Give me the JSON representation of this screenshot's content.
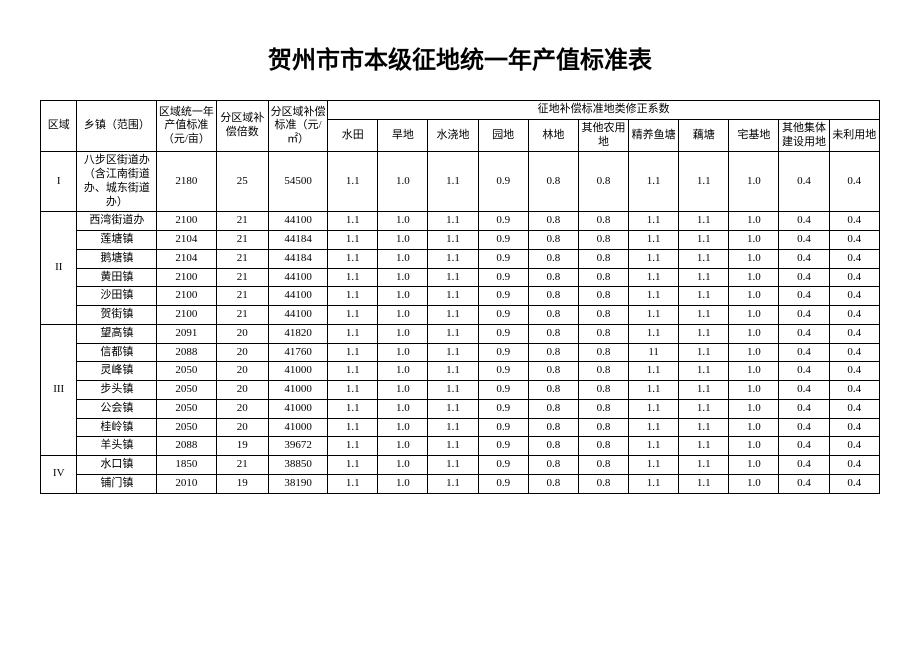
{
  "title": "贺州市市本级征地统一年产值标准表",
  "header": {
    "region": "区域",
    "town": "乡镇（范围）",
    "std": "区域统一年产值标准（元/亩）",
    "mult": "分区域补偿倍数",
    "comp": "分区域补偿标准（元/㎡）",
    "coef_group": "征地补偿标准地类修正系数",
    "coef": [
      "水田",
      "旱地",
      "水浇地",
      "园地",
      "林地",
      "其他农用地",
      "精养鱼塘",
      "藕塘",
      "宅基地",
      "其他集体建设用地",
      "未利用地"
    ]
  },
  "groups": [
    {
      "region": "I",
      "rows": [
        {
          "town": "八步区街道办（含江南街道办、城东街道办）",
          "std": "2180",
          "mult": "25",
          "comp": "54500",
          "coef": [
            "1.1",
            "1.0",
            "1.1",
            "0.9",
            "0.8",
            "0.8",
            "1.1",
            "1.1",
            "1.0",
            "0.4",
            "0.4"
          ]
        }
      ]
    },
    {
      "region": "II",
      "rows": [
        {
          "town": "西湾街道办",
          "std": "2100",
          "mult": "21",
          "comp": "44100",
          "coef": [
            "1.1",
            "1.0",
            "1.1",
            "0.9",
            "0.8",
            "0.8",
            "1.1",
            "1.1",
            "1.0",
            "0.4",
            "0.4"
          ]
        },
        {
          "town": "莲塘镇",
          "std": "2104",
          "mult": "21",
          "comp": "44184",
          "coef": [
            "1.1",
            "1.0",
            "1.1",
            "0.9",
            "0.8",
            "0.8",
            "1.1",
            "1.1",
            "1.0",
            "0.4",
            "0.4"
          ]
        },
        {
          "town": "鹅塘镇",
          "std": "2104",
          "mult": "21",
          "comp": "44184",
          "coef": [
            "1.1",
            "1.0",
            "1.1",
            "0.9",
            "0.8",
            "0.8",
            "1.1",
            "1.1",
            "1.0",
            "0.4",
            "0.4"
          ]
        },
        {
          "town": "黄田镇",
          "std": "2100",
          "mult": "21",
          "comp": "44100",
          "coef": [
            "1.1",
            "1.0",
            "1.1",
            "0.9",
            "0.8",
            "0.8",
            "1.1",
            "1.1",
            "1.0",
            "0.4",
            "0.4"
          ]
        },
        {
          "town": "沙田镇",
          "std": "2100",
          "mult": "21",
          "comp": "44100",
          "coef": [
            "1.1",
            "1.0",
            "1.1",
            "0.9",
            "0.8",
            "0.8",
            "1.1",
            "1.1",
            "1.0",
            "0.4",
            "0.4"
          ]
        },
        {
          "town": "贺街镇",
          "std": "2100",
          "mult": "21",
          "comp": "44100",
          "coef": [
            "1.1",
            "1.0",
            "1.1",
            "0.9",
            "0.8",
            "0.8",
            "1.1",
            "1.1",
            "1.0",
            "0.4",
            "0.4"
          ]
        }
      ]
    },
    {
      "region": "III",
      "rows": [
        {
          "town": "望高镇",
          "std": "2091",
          "mult": "20",
          "comp": "41820",
          "coef": [
            "1.1",
            "1.0",
            "1.1",
            "0.9",
            "0.8",
            "0.8",
            "1.1",
            "1.1",
            "1.0",
            "0.4",
            "0.4"
          ]
        },
        {
          "town": "信都镇",
          "std": "2088",
          "mult": "20",
          "comp": "41760",
          "coef": [
            "1.1",
            "1.0",
            "1.1",
            "0.9",
            "0.8",
            "0.8",
            "11",
            "1.1",
            "1.0",
            "0.4",
            "0.4"
          ]
        },
        {
          "town": "灵峰镇",
          "std": "2050",
          "mult": "20",
          "comp": "41000",
          "coef": [
            "1.1",
            "1.0",
            "1.1",
            "0.9",
            "0.8",
            "0.8",
            "1.1",
            "1.1",
            "1.0",
            "0.4",
            "0.4"
          ]
        },
        {
          "town": "步头镇",
          "std": "2050",
          "mult": "20",
          "comp": "41000",
          "coef": [
            "1.1",
            "1.0",
            "1.1",
            "0.9",
            "0.8",
            "0.8",
            "1.1",
            "1.1",
            "1.0",
            "0.4",
            "0.4"
          ]
        },
        {
          "town": "公会镇",
          "std": "2050",
          "mult": "20",
          "comp": "41000",
          "coef": [
            "1.1",
            "1.0",
            "1.1",
            "0.9",
            "0.8",
            "0.8",
            "1.1",
            "1.1",
            "1.0",
            "0.4",
            "0.4"
          ]
        },
        {
          "town": "桂岭镇",
          "std": "2050",
          "mult": "20",
          "comp": "41000",
          "coef": [
            "1.1",
            "1.0",
            "1.1",
            "0.9",
            "0.8",
            "0.8",
            "1.1",
            "1.1",
            "1.0",
            "0.4",
            "0.4"
          ]
        },
        {
          "town": "羊头镇",
          "std": "2088",
          "mult": "19",
          "comp": "39672",
          "coef": [
            "1.1",
            "1.0",
            "1.1",
            "0.9",
            "0.8",
            "0.8",
            "1.1",
            "1.1",
            "1.0",
            "0.4",
            "0.4"
          ]
        }
      ]
    },
    {
      "region": "IV",
      "rows": [
        {
          "town": "水口镇",
          "std": "1850",
          "mult": "21",
          "comp": "38850",
          "coef": [
            "1.1",
            "1.0",
            "1.1",
            "0.9",
            "0.8",
            "0.8",
            "1.1",
            "1.1",
            "1.0",
            "0.4",
            "0.4"
          ]
        },
        {
          "town": "铺门镇",
          "std": "2010",
          "mult": "19",
          "comp": "38190",
          "coef": [
            "1.1",
            "1.0",
            "1.1",
            "0.9",
            "0.8",
            "0.8",
            "1.1",
            "1.1",
            "1.0",
            "0.4",
            "0.4"
          ]
        }
      ]
    }
  ]
}
